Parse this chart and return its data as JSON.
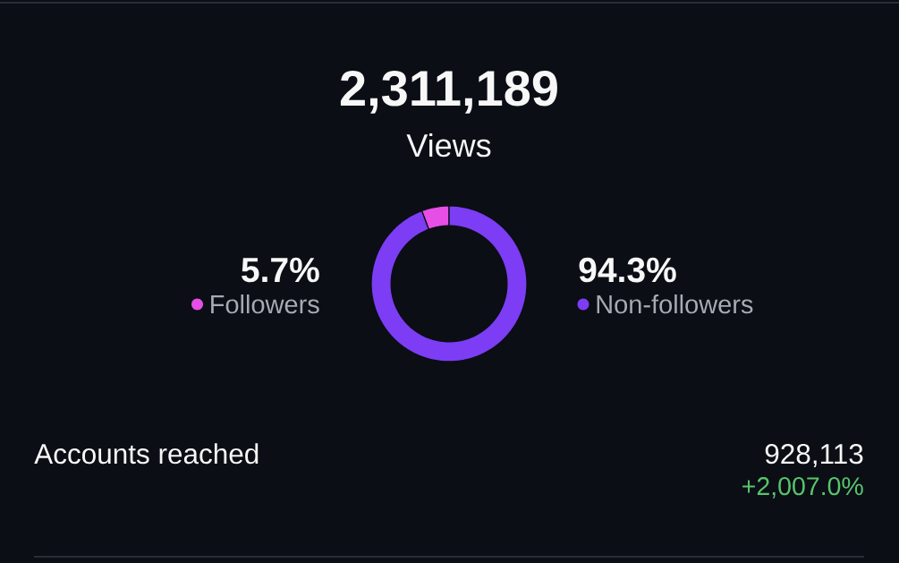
{
  "chart_data": {
    "type": "donut",
    "title": "2,311,189",
    "subtitle": "Views",
    "categories": [
      "Followers",
      "Non-followers"
    ],
    "values": [
      5.7,
      94.3
    ],
    "colors": [
      "#e64ee6",
      "#7c3df4"
    ],
    "value_labels": [
      "5.7%",
      "94.3%"
    ],
    "legend": "center",
    "annotations": [
      "Accounts reached",
      "928,113",
      "+2,007.0%"
    ]
  }
}
